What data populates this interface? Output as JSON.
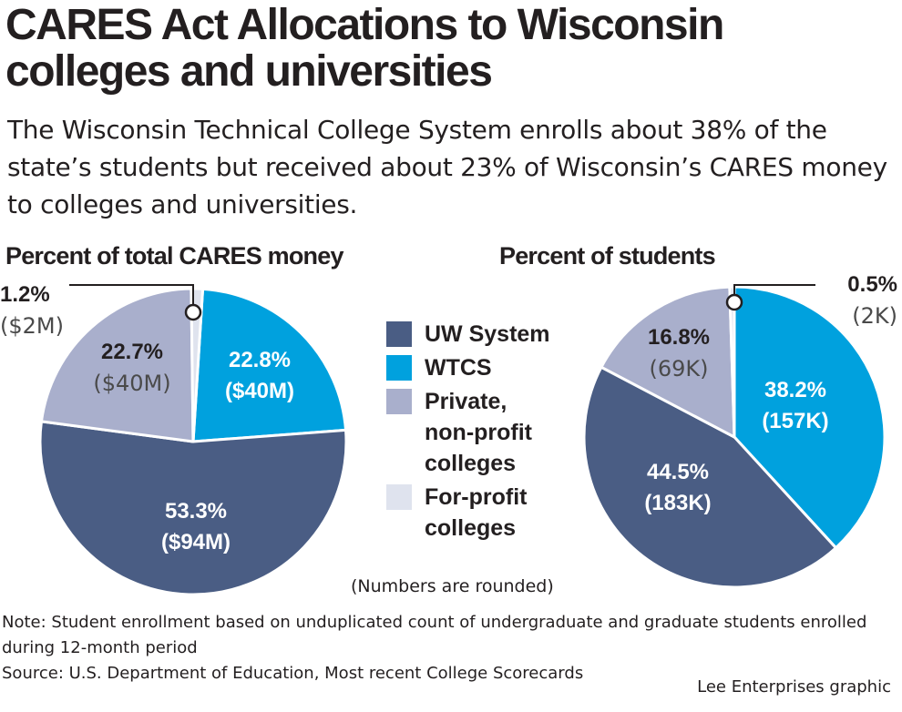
{
  "title": "CARES Act Allocations to Wisconsin colleges and universities",
  "subtitle": "The Wisconsin Technical College System enrolls about 38% of the state’s students but received about 23% of Wisconsin’s CARES money to colleges and universities.",
  "colors": {
    "uw": "#4a5d84",
    "wtcs": "#00a1de",
    "private": "#a9afcc",
    "forprofit": "#dfe3ee",
    "callout": "#231f20"
  },
  "legend": [
    {
      "label": "UW System",
      "color": "#4a5d84"
    },
    {
      "label": "WTCS",
      "color": "#00a1de"
    },
    {
      "label": "Private, non-profit colleges",
      "color": "#a9afcc"
    },
    {
      "label": "For-profit colleges",
      "color": "#dfe3ee"
    }
  ],
  "rounded_note": "(Numbers are rounded)",
  "note_line1": "Note: Student enrollment based on unduplicated count of undergraduate and graduate students enrolled during 12-month period",
  "note_line2": "Source: U.S. Department of Education, Most recent College Scorecards",
  "credit": "Lee Enterprises graphic",
  "chart_data": [
    {
      "type": "pie",
      "title": "Percent of total CARES money",
      "categories": [
        "WTCS",
        "UW System",
        "Private, non-profit colleges",
        "For-profit colleges"
      ],
      "values": [
        22.8,
        53.3,
        22.7,
        1.2
      ],
      "pct_labels": [
        "22.8%",
        "53.3%",
        "22.7%",
        "1.2%"
      ],
      "amount_labels": [
        "($40M)",
        "($94M)",
        "($40M)",
        "($2M)"
      ],
      "colors": [
        "#00a1de",
        "#4a5d84",
        "#a9afcc",
        "#dfe3ee"
      ]
    },
    {
      "type": "pie",
      "title": "Percent of students",
      "categories": [
        "WTCS",
        "UW System",
        "Private, non-profit colleges",
        "For-profit colleges"
      ],
      "values": [
        38.2,
        44.5,
        16.8,
        0.5
      ],
      "pct_labels": [
        "38.2%",
        "44.5%",
        "16.8%",
        "0.5%"
      ],
      "amount_labels": [
        "(157K)",
        "(183K)",
        "(69K)",
        "(2K)"
      ],
      "colors": [
        "#00a1de",
        "#4a5d84",
        "#a9afcc",
        "#dfe3ee"
      ]
    }
  ]
}
